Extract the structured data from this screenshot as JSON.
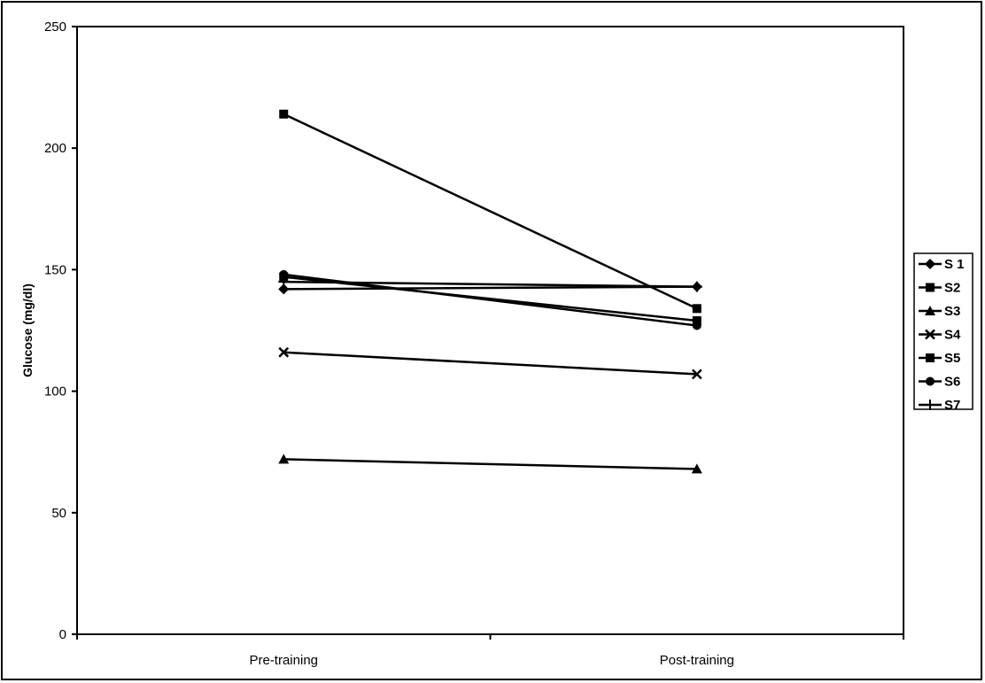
{
  "chart_data": {
    "type": "line",
    "title": "",
    "xlabel": "",
    "ylabel": "Glucose (mg/dl)",
    "categories": [
      "Pre-training",
      "Post-training"
    ],
    "ylim": [
      0,
      250
    ],
    "yticks": [
      "0",
      "50",
      "100",
      "150",
      "200",
      "250"
    ],
    "grid": false,
    "legend_position": "right",
    "series": [
      {
        "name": "S 1",
        "marker": "diamond",
        "values": [
          142,
          143
        ]
      },
      {
        "name": "S2",
        "marker": "square",
        "values": [
          214,
          134
        ]
      },
      {
        "name": "S3",
        "marker": "triangle",
        "values": [
          72,
          68
        ]
      },
      {
        "name": "S4",
        "marker": "x",
        "values": [
          116,
          107
        ]
      },
      {
        "name": "S5",
        "marker": "square",
        "values": [
          147,
          129
        ]
      },
      {
        "name": "S6",
        "marker": "circle",
        "values": [
          148,
          127
        ]
      },
      {
        "name": "S7",
        "marker": "plus",
        "values": [
          145,
          143
        ]
      }
    ]
  }
}
